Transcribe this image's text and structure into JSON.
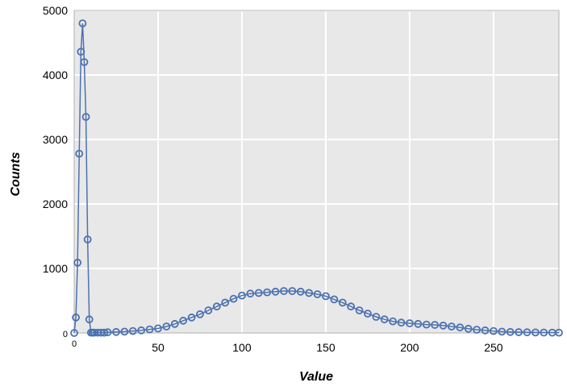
{
  "chart_data": {
    "type": "line",
    "xlabel": "Value",
    "ylabel": "Counts",
    "xlim": [
      0,
      289
    ],
    "ylim": [
      0,
      5000
    ],
    "x_ticks": [
      0,
      50,
      100,
      150,
      200,
      250
    ],
    "y_ticks": [
      0,
      1000,
      2000,
      3000,
      4000,
      5000
    ],
    "grid": true,
    "marker": "open-circle",
    "colors": {
      "series": "#4c72b0",
      "plot_bg": "#e8e8e8",
      "grid": "#ffffff",
      "frame": "#b0b0b0"
    },
    "series": [
      {
        "x": [
          0,
          1,
          2,
          3,
          4,
          5,
          6,
          7,
          8,
          9,
          10,
          11,
          12,
          14,
          16,
          18,
          20,
          25,
          30,
          35,
          40,
          45,
          50,
          55,
          60,
          65,
          70,
          75,
          80,
          85,
          90,
          95,
          100,
          105,
          110,
          115,
          120,
          125,
          130,
          135,
          140,
          145,
          150,
          155,
          160,
          165,
          170,
          175,
          180,
          185,
          190,
          195,
          200,
          205,
          210,
          215,
          220,
          225,
          230,
          235,
          240,
          245,
          250,
          255,
          260,
          265,
          270,
          275,
          280,
          285,
          289
        ],
        "y": [
          0,
          240,
          1090,
          2780,
          4360,
          4800,
          4200,
          3350,
          1450,
          210,
          5,
          5,
          5,
          5,
          5,
          5,
          10,
          15,
          20,
          30,
          40,
          55,
          70,
          100,
          140,
          190,
          240,
          290,
          350,
          410,
          470,
          530,
          580,
          610,
          620,
          630,
          640,
          650,
          650,
          640,
          620,
          600,
          570,
          520,
          470,
          410,
          350,
          300,
          250,
          210,
          180,
          160,
          150,
          140,
          130,
          125,
          115,
          100,
          85,
          65,
          50,
          40,
          30,
          20,
          15,
          12,
          10,
          8,
          6,
          5,
          5
        ]
      }
    ]
  }
}
